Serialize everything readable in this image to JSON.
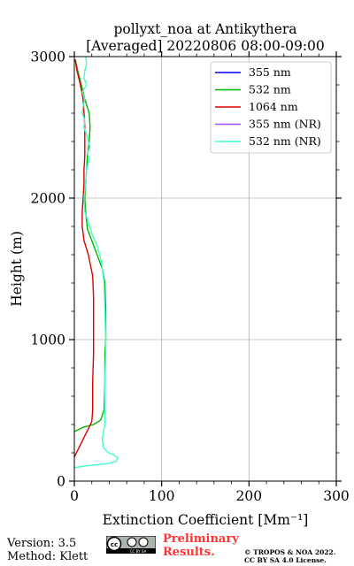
{
  "chart_data": {
    "type": "line",
    "title_line1": "pollyxt_noa at Antikythera",
    "title_line2": "[Averaged] 20220806 08:00-09:00",
    "xlabel": "Extinction Coefficient [Mm⁻¹]",
    "ylabel": "Height (m)",
    "xlim": [
      0,
      300
    ],
    "ylim": [
      0,
      3000
    ],
    "xticks": [
      0,
      100,
      200,
      300
    ],
    "yticks": [
      0,
      1000,
      2000,
      3000
    ],
    "grid": true,
    "legend_position": "top-right",
    "series": [
      {
        "name": "355 nm",
        "color": "#0000ff",
        "points": []
      },
      {
        "name": "532 nm",
        "color": "#00b400",
        "points": [
          [
            0,
            350
          ],
          [
            10,
            380
          ],
          [
            22,
            400
          ],
          [
            30,
            430
          ],
          [
            34,
            500
          ],
          [
            35,
            700
          ],
          [
            35,
            900
          ],
          [
            36,
            1000
          ],
          [
            36,
            1200
          ],
          [
            35,
            1400
          ],
          [
            32,
            1500
          ],
          [
            26,
            1600
          ],
          [
            20,
            1700
          ],
          [
            15,
            1780
          ],
          [
            13,
            1900
          ],
          [
            12,
            2000
          ],
          [
            13,
            2100
          ],
          [
            14,
            2200
          ],
          [
            15,
            2300
          ],
          [
            17,
            2400
          ],
          [
            18,
            2500
          ],
          [
            17,
            2600
          ],
          [
            12,
            2700
          ],
          [
            8,
            2800
          ],
          [
            4,
            2900
          ],
          [
            1,
            2980
          ]
        ]
      },
      {
        "name": "1064 nm",
        "color": "#dc0000",
        "points": [
          [
            0,
            170
          ],
          [
            8,
            270
          ],
          [
            16,
            370
          ],
          [
            20,
            420
          ],
          [
            21,
            500
          ],
          [
            21,
            700
          ],
          [
            22,
            900
          ],
          [
            22,
            1100
          ],
          [
            22,
            1300
          ],
          [
            21,
            1450
          ],
          [
            16,
            1600
          ],
          [
            11,
            1700
          ],
          [
            9,
            1800
          ],
          [
            9,
            1900
          ],
          [
            10,
            2000
          ],
          [
            11,
            2100
          ],
          [
            11,
            2200
          ],
          [
            12,
            2300
          ],
          [
            12,
            2400
          ],
          [
            12,
            2500
          ],
          [
            11,
            2600
          ],
          [
            10,
            2700
          ],
          [
            7,
            2800
          ],
          [
            3,
            2900
          ],
          [
            1,
            2980
          ]
        ]
      },
      {
        "name": "355 nm (NR)",
        "color": "#a050ff",
        "points": []
      },
      {
        "name": "532 nm (NR)",
        "color": "#40ffd0",
        "points": [
          [
            0,
            95
          ],
          [
            10,
            105
          ],
          [
            25,
            115
          ],
          [
            40,
            125
          ],
          [
            48,
            140
          ],
          [
            50,
            165
          ],
          [
            45,
            185
          ],
          [
            38,
            205
          ],
          [
            33,
            240
          ],
          [
            32,
            300
          ],
          [
            35,
            400
          ],
          [
            35,
            500
          ],
          [
            35,
            700
          ],
          [
            36,
            900
          ],
          [
            36,
            1000
          ],
          [
            35,
            1200
          ],
          [
            34,
            1400
          ],
          [
            31,
            1550
          ],
          [
            27,
            1650
          ],
          [
            20,
            1750
          ],
          [
            15,
            1850
          ],
          [
            12,
            1900
          ],
          [
            11,
            2000
          ],
          [
            13,
            2100
          ],
          [
            14,
            2200
          ],
          [
            17,
            2280
          ],
          [
            15,
            2320
          ],
          [
            18,
            2360
          ],
          [
            16,
            2400
          ],
          [
            14,
            2450
          ],
          [
            11,
            2500
          ],
          [
            12,
            2550
          ],
          [
            9,
            2600
          ],
          [
            10,
            2650
          ],
          [
            12,
            2700
          ],
          [
            9,
            2750
          ],
          [
            14,
            2800
          ],
          [
            11,
            2850
          ],
          [
            12,
            2900
          ],
          [
            14,
            2950
          ],
          [
            13,
            3000
          ]
        ]
      }
    ]
  },
  "footer": {
    "version": "Version: 3.5",
    "method": "Method: Klett",
    "preliminary_line1": "Preliminary",
    "preliminary_line2": "Results.",
    "preliminary_color": "#ff3333",
    "copyright_line1": "© TROPOS & NOA 2022.",
    "copyright_line2": "CC BY SA 4.0 License.",
    "license_badge_text": "CC BY SA",
    "license_icon": "creative-commons-badge-icon"
  }
}
